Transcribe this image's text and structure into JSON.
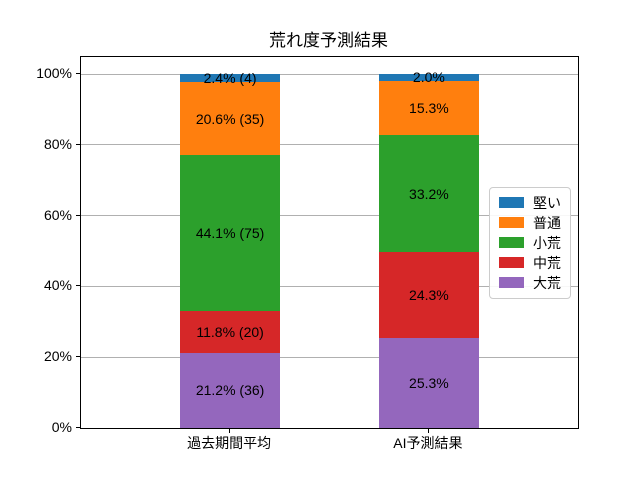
{
  "chart_data": {
    "type": "bar",
    "stacked": true,
    "title": "荒れ度予測結果",
    "xlabel": "",
    "ylabel": "",
    "categories": [
      "過去期間平均",
      "AI予測結果"
    ],
    "series": [
      {
        "name": "堅い",
        "color": "#1f77b4",
        "values": [
          2.4,
          2.0
        ],
        "bar_labels": [
          "2.4% (4)",
          "2.0%"
        ]
      },
      {
        "name": "普通",
        "color": "#ff7f0e",
        "values": [
          20.6,
          15.3
        ],
        "bar_labels": [
          "20.6% (35)",
          "15.3%"
        ]
      },
      {
        "name": "小荒",
        "color": "#2ca02c",
        "values": [
          44.1,
          33.2
        ],
        "bar_labels": [
          "44.1% (75)",
          "33.2%"
        ]
      },
      {
        "name": "中荒",
        "color": "#d62728",
        "values": [
          11.8,
          24.3
        ],
        "bar_labels": [
          "11.8% (20)",
          "24.3%"
        ]
      },
      {
        "name": "大荒",
        "color": "#9467bd",
        "values": [
          21.2,
          25.3
        ],
        "bar_labels": [
          "21.2% (36)",
          "25.3%"
        ]
      }
    ],
    "stack_order_bottom_to_top": [
      "大荒",
      "中荒",
      "小荒",
      "普通",
      "堅い"
    ],
    "y_ticks": [
      0,
      20,
      40,
      60,
      80,
      100
    ],
    "y_tick_labels": [
      "0%",
      "20%",
      "40%",
      "60%",
      "80%",
      "100%"
    ],
    "ylim": [
      0,
      104.8
    ],
    "grid": "horizontal",
    "grid_color": "#b0b0b0",
    "legend": {
      "position": "center right",
      "entries": [
        "堅い",
        "普通",
        "小荒",
        "中荒",
        "大荒"
      ]
    }
  }
}
